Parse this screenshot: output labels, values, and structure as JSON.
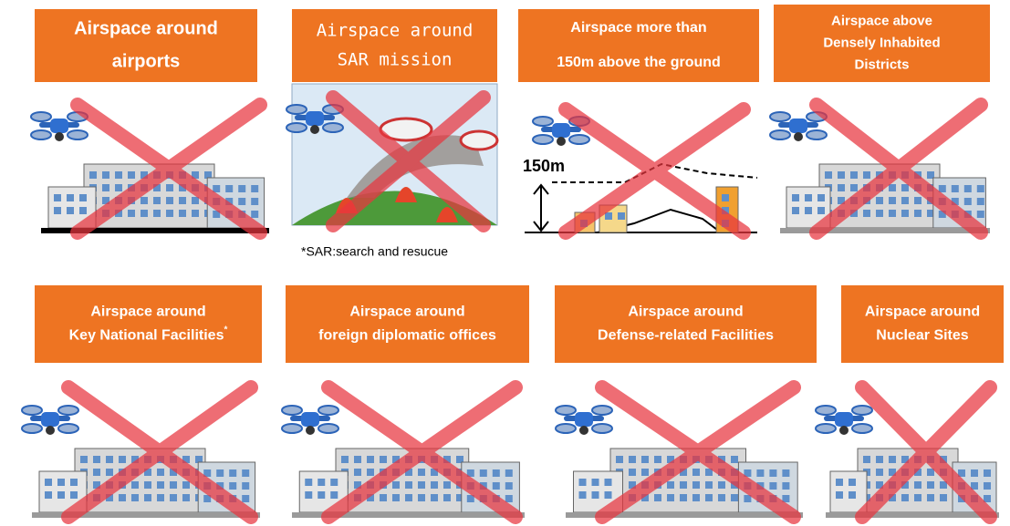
{
  "panels": [
    {
      "title_lines": [
        "Airspace around",
        "airports"
      ]
    },
    {
      "title_lines": [
        "Airspace around",
        "SAR mission"
      ],
      "note": "*SAR:search and resucue"
    },
    {
      "title_lines": [
        "Airspace more than",
        "150m above the ground"
      ],
      "height_label": "150m"
    },
    {
      "title_lines": [
        "Airspace above",
        "Densely Inhabited",
        "Districts"
      ]
    },
    {
      "title_lines": [
        "Airspace around",
        "Key National Facilities"
      ],
      "title_mark": "*"
    },
    {
      "title_lines": [
        "Airspace around",
        "foreign diplomatic offices"
      ]
    },
    {
      "title_lines": [
        "Airspace around",
        "Defense-related Facilities"
      ]
    },
    {
      "title_lines": [
        "Airspace around",
        "Nuclear Sites"
      ]
    }
  ]
}
